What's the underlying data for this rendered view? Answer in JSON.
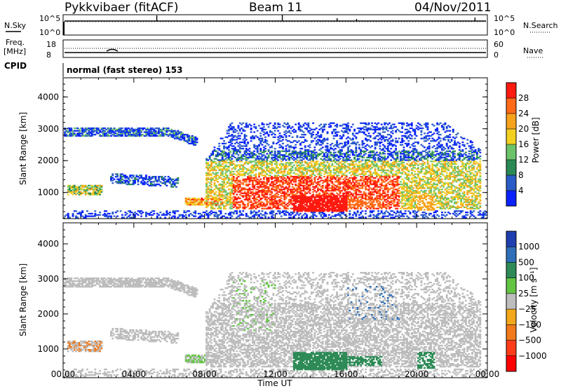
{
  "header": {
    "station": "Pykkvibaer (fitACF)",
    "beam": "Beam 11",
    "date": "04/Nov/2011"
  },
  "panels": {
    "nsky": {
      "label": "N.Sky",
      "ticks": [
        "10^5",
        "10^0"
      ],
      "right_ticks": [
        "10^5",
        "10^0"
      ],
      "right_label": "N.Search"
    },
    "freq": {
      "label": "Freq.",
      "unit": "[MHz]",
      "ticks": [
        "18",
        "8"
      ],
      "right_ticks": [
        "60",
        "0"
      ],
      "right_label": "Nave"
    },
    "cpid": {
      "label": "CPID",
      "mode": "normal (fast stereo) 153"
    }
  },
  "chart_data": [
    {
      "type": "heatmap",
      "name": "power",
      "ylabel": "Slant Range [km]",
      "xlabel": "Time UT",
      "x_ticks": [
        "00:00",
        "04:00",
        "08:00",
        "12:00",
        "16:00",
        "20:00",
        "00:00"
      ],
      "y_ticks": [
        "1000",
        "2000",
        "3000",
        "4000"
      ],
      "ylim": [
        180,
        4600
      ],
      "xlim_hours": [
        0,
        24
      ],
      "colorbar": {
        "label": "Power [dB]",
        "ticks": [
          "4",
          "8",
          "12",
          "16",
          "20",
          "24",
          "28"
        ],
        "colors": [
          "#0a22ff",
          "#2a5cc8",
          "#2a8a56",
          "#6cc36a",
          "#f2d020",
          "#f6a31c",
          "#ff6a18",
          "#ff1a10"
        ]
      }
    },
    {
      "type": "heatmap",
      "name": "velocity",
      "ylabel": "Slant Range [km]",
      "xlabel": "Time UT",
      "x_ticks": [
        "00:00",
        "04:00",
        "08:00",
        "12:00",
        "16:00",
        "20:00",
        "00:00"
      ],
      "y_ticks": [
        "1000",
        "2000",
        "3000",
        "4000"
      ],
      "ylim": [
        180,
        4600
      ],
      "xlim_hours": [
        0,
        24
      ],
      "colorbar": {
        "label": "Velocity [m s⁻¹]",
        "ticks": [
          "1000",
          "500",
          "100",
          "25",
          "−25",
          "−100",
          "−500",
          "−1000"
        ],
        "colors": [
          "#1f3fb0",
          "#2f6fb8",
          "#2e8b57",
          "#62c443",
          "#bdbdbd",
          "#f2a81a",
          "#f27a1a",
          "#ff3c1a",
          "#ff0000"
        ]
      }
    }
  ]
}
